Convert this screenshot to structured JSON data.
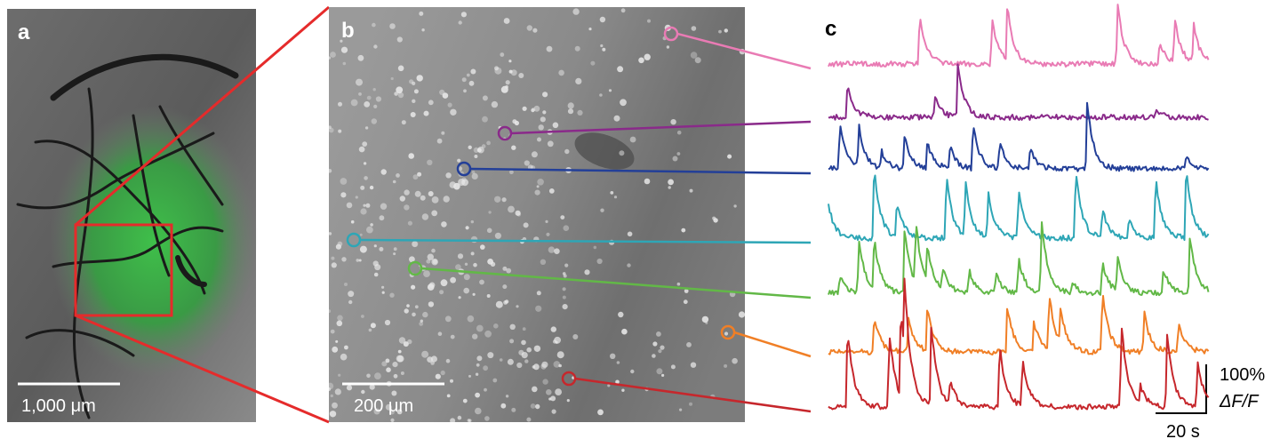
{
  "panels": [
    {
      "label": "a",
      "scale_bar": "1,000 μm"
    },
    {
      "label": "b",
      "scale_bar": "200 μm"
    },
    {
      "label": "c",
      "scale_y": "100%",
      "scale_y_unit": "ΔF/F",
      "scale_x": "20 s"
    }
  ]
}
